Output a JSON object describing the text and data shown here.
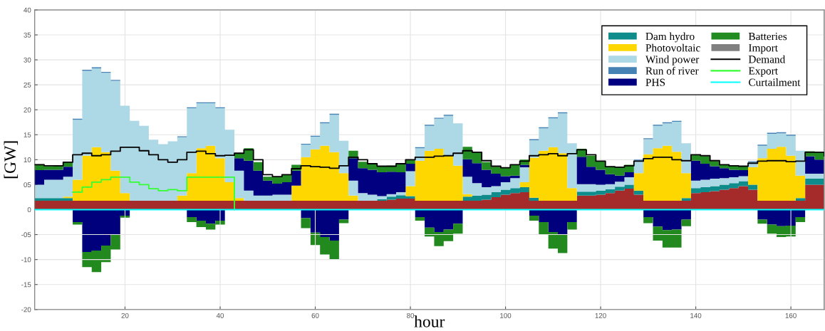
{
  "chart_data": [
    {
      "type": "area",
      "stacked": true,
      "xlabel": "hour",
      "ylabel": "[GW]",
      "x": [
        1,
        3,
        5,
        7,
        9,
        11,
        13,
        15,
        17,
        19,
        21,
        23,
        25,
        27,
        29,
        31,
        33,
        35,
        37,
        39,
        41,
        43,
        45,
        47,
        49,
        51,
        53,
        55,
        57,
        59,
        61,
        63,
        65,
        67,
        69,
        71,
        73,
        75,
        77,
        79,
        81,
        83,
        85,
        87,
        89,
        91,
        93,
        95,
        97,
        99,
        101,
        103,
        105,
        107,
        109,
        111,
        113,
        115,
        117,
        119,
        121,
        123,
        125,
        127,
        129,
        131,
        133,
        135,
        137,
        139,
        141,
        143,
        145,
        147,
        149,
        151,
        153,
        155,
        157,
        159,
        161,
        163,
        165,
        167
      ],
      "xlim": [
        1,
        167
      ],
      "xticks": [
        20,
        40,
        60,
        80,
        100,
        120,
        140,
        160
      ],
      "ylim": [
        -20,
        40
      ],
      "yticks": [
        -20,
        -15,
        -10,
        {
          "value": -5,
          "label": "-05"
        },
        0,
        {
          "value": 5,
          "label": "05"
        },
        10,
        15,
        20,
        25,
        30,
        35,
        40
      ],
      "grid": true,
      "legend": "top right",
      "series": [
        {
          "color": "#a52a2a",
          "values": [
            1.8,
            1.8,
            1.8,
            1.8,
            1.8,
            1.8,
            1.8,
            1.8,
            1.8,
            1.8,
            1.8,
            1.8,
            1.8,
            1.8,
            1.8,
            1.8,
            1.8,
            1.8,
            1.8,
            1.8,
            1.8,
            1.8,
            1.8,
            1.8,
            1.8,
            1.8,
            1.8,
            1.8,
            1.8,
            1.8,
            1.8,
            1.8,
            1.8,
            1.8,
            1.8,
            1.8,
            1.8,
            2.0,
            2.2,
            2.2,
            1.8,
            1.8,
            1.8,
            1.8,
            1.8,
            1.8,
            1.8,
            2.0,
            2.5,
            3.0,
            3.3,
            3.5,
            1.8,
            1.8,
            1.8,
            1.8,
            1.8,
            2.8,
            2.8,
            3.0,
            3.3,
            3.8,
            4.2,
            3.0,
            1.8,
            1.8,
            1.8,
            1.8,
            1.8,
            3.3,
            3.5,
            3.7,
            4.0,
            4.3,
            4.7,
            4.0,
            1.8,
            1.8,
            1.8,
            1.8,
            1.8,
            5.0,
            5.0,
            5.0
          ]
        },
        {
          "name": "Dam hydro",
          "color": "#0e8c8c",
          "values": [
            0.5,
            0.5,
            0.5,
            0.5,
            0,
            0,
            0,
            0,
            0,
            0,
            0,
            0,
            0,
            0,
            0,
            0,
            0,
            0,
            0,
            0,
            0,
            0,
            0,
            0,
            0,
            0,
            0,
            0,
            0,
            0,
            0,
            0,
            0,
            0,
            0,
            0,
            0.3,
            0.6,
            0.7,
            0.5,
            0,
            0,
            0,
            0,
            0,
            0.8,
            1.0,
            1.0,
            1.0,
            1.0,
            1.0,
            1.0,
            0.6,
            0,
            0,
            0,
            0,
            0.8,
            0.8,
            0.8,
            0.8,
            0.8,
            0.8,
            0.8,
            0,
            0,
            0,
            0,
            0.5,
            1.0,
            1.0,
            1.0,
            1.0,
            1.0,
            1.0,
            1.0,
            0,
            0,
            0,
            0,
            0.5,
            1.2,
            1.2,
            1.2
          ]
        },
        {
          "name": "Photovoltaic",
          "color": "#ffd700",
          "values": [
            0,
            0,
            0,
            0.3,
            4.2,
            9.0,
            10.7,
            9.7,
            6.0,
            1.5,
            0,
            0,
            0,
            0,
            0,
            1.0,
            5.5,
            10.5,
            11.0,
            8.5,
            3.7,
            0.5,
            0,
            0,
            0,
            0,
            0,
            3.0,
            8.7,
            10.3,
            11.0,
            9.7,
            5.5,
            1.0,
            0,
            0,
            0,
            0,
            0,
            2.0,
            8.0,
            10.0,
            10.4,
            9.0,
            7.0,
            0.5,
            0,
            0,
            0,
            0,
            0,
            1.0,
            8.0,
            10.0,
            10.7,
            9.5,
            2.5,
            0,
            0,
            0,
            0,
            0,
            0,
            3.5,
            9.3,
            10.5,
            11.0,
            9.8,
            5.0,
            0,
            0,
            0,
            0,
            0,
            0,
            3.5,
            8.5,
            10.4,
            10.8,
            9.0,
            4.5,
            0,
            0,
            0
          ]
        },
        {
          "name": "Wind power",
          "color": "#add8e6",
          "values": [
            2.7,
            3.7,
            3.7,
            4.0,
            12.0,
            17.0,
            15.8,
            15.9,
            18.0,
            17.5,
            16.0,
            15.0,
            12.2,
            11.3,
            11.9,
            11.7,
            13.0,
            9.0,
            8.5,
            10.0,
            10.5,
            5.5,
            2.0,
            1.0,
            1.0,
            1.2,
            1.2,
            0,
            2.5,
            2.5,
            4.5,
            7.5,
            6.5,
            3.0,
            1.5,
            1.2,
            0.6,
            0.5,
            0.6,
            3.0,
            2.5,
            5.0,
            6.0,
            8.0,
            8.5,
            3.5,
            2.5,
            1.5,
            1.2,
            1.5,
            2.0,
            3.0,
            3.5,
            4.5,
            5.8,
            8.0,
            9.0,
            1.5,
            1.5,
            1.2,
            1.0,
            1.0,
            1.5,
            2.5,
            3.0,
            4.5,
            4.5,
            6.0,
            6.0,
            1.5,
            1.5,
            1.5,
            1.3,
            1.2,
            1.0,
            1.0,
            2.5,
            3.0,
            2.7,
            4.0,
            5.0,
            1.0,
            1.0,
            1.2
          ]
        },
        {
          "name": "Run of river",
          "color": "#4682b4",
          "values": [
            null,
            null,
            null,
            null,
            0.2,
            0.2,
            0.2,
            0.2,
            0.2,
            0.2,
            null,
            null,
            null,
            null,
            null,
            0.2,
            0.2,
            0.2,
            0.2,
            0.2,
            0.2,
            null,
            null,
            null,
            null,
            null,
            null,
            null,
            0.2,
            0.2,
            0.2,
            0.2,
            0.2,
            null,
            null,
            null,
            null,
            null,
            null,
            null,
            0.2,
            0.2,
            0.2,
            0.2,
            0.2,
            null,
            null,
            null,
            null,
            null,
            null,
            null,
            0.2,
            0.2,
            0.2,
            0.2,
            0.2,
            null,
            null,
            null,
            null,
            null,
            null,
            0.2,
            0.2,
            0.2,
            0.2,
            0.2,
            0.2,
            null,
            null,
            null,
            null,
            null,
            null,
            0.2,
            0.2,
            0.2,
            0.2,
            0.2,
            0.2,
            null,
            null,
            null
          ]
        },
        {
          "name": "PHS",
          "color": "#000080",
          "values": [
            2.9,
            2.0,
            2.0,
            2.0,
            0,
            0,
            0,
            0,
            0,
            0,
            0,
            0,
            0,
            0,
            0,
            0,
            0,
            0,
            0,
            0,
            0,
            2.5,
            6.0,
            5.0,
            3.0,
            2.2,
            2.5,
            3.0,
            0,
            0,
            0,
            0,
            0,
            4.5,
            5.0,
            5.0,
            4.8,
            4.5,
            4.0,
            1.5,
            0,
            0,
            0,
            0,
            0,
            3.5,
            4.0,
            3.5,
            2.5,
            1.2,
            0.5,
            0.5,
            0,
            0,
            0,
            0,
            0,
            5.5,
            3.5,
            3.0,
            2.0,
            1.2,
            1.0,
            0,
            0,
            0,
            0,
            0,
            0,
            4.0,
            3.2,
            2.5,
            2.0,
            1.5,
            1.2,
            0,
            0,
            0,
            0,
            0,
            0,
            3.5,
            2.8,
            2.2
          ]
        },
        {
          "name": "Batteries",
          "color": "#228b22",
          "values": [
            1.2,
            0.7,
            0.8,
            1.0,
            0,
            0,
            0,
            0,
            0,
            0,
            0,
            0,
            0,
            0,
            0,
            0,
            0,
            0,
            0,
            0,
            0,
            1.0,
            2.5,
            1.7,
            0.8,
            1.4,
            1.5,
            1.2,
            0,
            0,
            0,
            0,
            0,
            1.5,
            1.3,
            1.3,
            1.2,
            1.2,
            1.7,
            0.8,
            0,
            0,
            0,
            0,
            0,
            2.5,
            2.2,
            1.5,
            1.4,
            1.7,
            2.2,
            1.0,
            0,
            0,
            0,
            0,
            0,
            1.6,
            2.2,
            1.7,
            1.4,
            1.7,
            1.5,
            0,
            0,
            0,
            0,
            0,
            0,
            1.2,
            1.5,
            1.0,
            0.7,
            0.8,
            0.8,
            0,
            0,
            0,
            0,
            0,
            0,
            1.0,
            1.5,
            1.2
          ]
        },
        {
          "name": "Import",
          "color": "#808080",
          "values": [
            null,
            null,
            null,
            null,
            null,
            null,
            null,
            null,
            null,
            null,
            null,
            null,
            null,
            null,
            null,
            null,
            null,
            null,
            null,
            null,
            null,
            null,
            null,
            null,
            null,
            null,
            null,
            null,
            null,
            null,
            null,
            null,
            null,
            null,
            null,
            null,
            null,
            null,
            null,
            null,
            null,
            null,
            null,
            null,
            null,
            null,
            null,
            null,
            null,
            null,
            null,
            null,
            null,
            null,
            null,
            null,
            null,
            null,
            null,
            null,
            null,
            null,
            null,
            null,
            null,
            null,
            null,
            null,
            null,
            null,
            null,
            null,
            null,
            null,
            null,
            null,
            null,
            null,
            null,
            null,
            null,
            null,
            null,
            null
          ]
        },
        {
          "name": "Demand",
          "type": "step",
          "color": "#000000",
          "values": [
            9.0,
            8.8,
            8.8,
            9.5,
            11.0,
            11.3,
            10.8,
            11.0,
            11.7,
            12.5,
            12.5,
            11.8,
            11.0,
            10.0,
            9.5,
            10.0,
            11.5,
            11.7,
            11.2,
            10.8,
            10.9,
            11.3,
            12.0,
            10.0,
            7.0,
            6.6,
            7.0,
            8.2,
            8.8,
            8.6,
            8.5,
            8.3,
            8.8,
            10.5,
            10.0,
            9.2,
            8.7,
            8.7,
            9.2,
            10.0,
            10.5,
            10.5,
            10.7,
            10.8,
            11.3,
            11.8,
            11.5,
            9.8,
            8.7,
            8.4,
            9.0,
            9.7,
            10.8,
            11.0,
            11.2,
            10.8,
            11.2,
            12.0,
            11.0,
            9.7,
            8.6,
            8.5,
            8.8,
            9.7,
            10.2,
            10.5,
            10.5,
            10.0,
            9.8,
            11.0,
            10.8,
            9.8,
            9.0,
            8.8,
            8.7,
            9.3,
            9.7,
            9.8,
            9.8,
            9.6,
            9.7,
            11.5,
            11.5,
            10.8
          ]
        },
        {
          "name": "Export",
          "type": "step",
          "color": "#33ff33",
          "values": [
            null,
            null,
            null,
            null,
            3.5,
            4.5,
            5.5,
            6.0,
            6.5,
            6.5,
            5.5,
            5.0,
            4.2,
            3.8,
            4.0,
            3.8,
            6.5,
            6.5,
            6.5,
            6.5,
            6.5,
            0,
            null,
            null,
            null,
            null,
            null,
            null,
            null,
            null,
            null,
            null,
            null,
            null,
            null,
            null,
            null,
            null,
            null,
            null,
            null,
            null,
            null,
            null,
            null,
            null,
            null,
            null,
            null,
            null,
            null,
            null,
            null,
            null,
            null,
            null,
            null,
            null,
            null,
            null,
            null,
            null,
            null,
            null,
            null,
            null,
            null,
            null,
            null,
            null,
            null,
            null,
            null,
            null,
            null,
            null,
            null,
            null,
            null,
            null,
            null,
            null,
            null,
            null
          ]
        },
        {
          "name": "Curtailment",
          "type": "step",
          "color": "#00ffff",
          "values": [
            0,
            0,
            0,
            0,
            0,
            0,
            0,
            0,
            0,
            0,
            0,
            0,
            0,
            0,
            0,
            0,
            0,
            0,
            0,
            0,
            0,
            0,
            0,
            0,
            0,
            0,
            0,
            0,
            0,
            0,
            0,
            0,
            0,
            0,
            0,
            0,
            0,
            0,
            0,
            0,
            0,
            0,
            0,
            0,
            0,
            0,
            0,
            0,
            0,
            0,
            0,
            0,
            0,
            0,
            0,
            0,
            0,
            0,
            0,
            0,
            0,
            0,
            0,
            0,
            0,
            0,
            0,
            0,
            0,
            0,
            0,
            0,
            0,
            0,
            0,
            0,
            0,
            0,
            0,
            0,
            0,
            0,
            0,
            0
          ]
        }
      ]
    },
    {
      "type": "area",
      "stacked": true,
      "tick_labels": false,
      "x": [
        1,
        3,
        5,
        7,
        9,
        11,
        13,
        15,
        17,
        19,
        21,
        23,
        25,
        27,
        29,
        31,
        33,
        35,
        37,
        39,
        41,
        43,
        45,
        47,
        49,
        51,
        53,
        55,
        57,
        59,
        61,
        63,
        65,
        67,
        69,
        71,
        73,
        75,
        77,
        79,
        81,
        83,
        85,
        87,
        89,
        91,
        93,
        95,
        97,
        99,
        101,
        103,
        105,
        107,
        109,
        111,
        113,
        115,
        117,
        119,
        121,
        123,
        125,
        127,
        129,
        131,
        133,
        135,
        137,
        139,
        141,
        143,
        145,
        147,
        149,
        151,
        153,
        155,
        157,
        159,
        161,
        163,
        165,
        167
      ],
      "xlim": [
        1,
        167
      ],
      "ylim": [
        -20,
        40
      ],
      "series": [
        {
          "color": "#00007c",
          "values": [
            0,
            0,
            0,
            0,
            -2.5,
            -8.5,
            -8.2,
            -7.2,
            -5.0,
            -1.2,
            0,
            0,
            0,
            0,
            0,
            0,
            -1.5,
            -2.2,
            -2.8,
            -2.2,
            0,
            0,
            0,
            0,
            0,
            0,
            0,
            0,
            -1.7,
            -4.6,
            -5.5,
            -6.2,
            -2.0,
            0,
            0,
            0,
            0,
            0,
            0,
            0,
            -1.5,
            -3.6,
            -4.5,
            -4.0,
            -2.8,
            0,
            0,
            0,
            0,
            0,
            0,
            0,
            -1.2,
            -2.5,
            -4.5,
            -5.0,
            -2.5,
            0,
            0,
            0,
            0,
            0,
            0,
            0,
            -1.5,
            -3.4,
            -4.1,
            -4.0,
            -2.0,
            0,
            0,
            0,
            0,
            0,
            0,
            0,
            -2.0,
            -3.0,
            -3.3,
            -3.2,
            -1.5,
            0,
            0,
            0
          ]
        },
        {
          "color": "#22891e",
          "values": [
            0,
            0,
            0,
            0,
            -0.5,
            -3.0,
            -4.3,
            -3.3,
            -3.0,
            -0.4,
            0,
            0,
            0,
            0,
            0,
            0,
            -1.0,
            -1.3,
            -1.2,
            -0.8,
            0,
            0,
            0,
            0,
            0,
            0,
            0,
            0,
            -2.0,
            -2.5,
            -3.5,
            -3.8,
            -0.7,
            0,
            0,
            0,
            0,
            0,
            0,
            0,
            -0.7,
            -1.8,
            -2.8,
            -2.3,
            -2.0,
            0,
            0,
            0,
            0,
            0,
            0,
            0,
            -1.0,
            -2.5,
            -3.3,
            -3.7,
            -1.5,
            0,
            0,
            0,
            0,
            0,
            0,
            0,
            -1.2,
            -2.8,
            -3.5,
            -3.6,
            -1.3,
            0,
            0,
            0,
            0,
            0,
            0,
            0,
            -0.8,
            -1.8,
            -2.2,
            -2.2,
            -1.0,
            0,
            0,
            0
          ]
        }
      ]
    }
  ]
}
